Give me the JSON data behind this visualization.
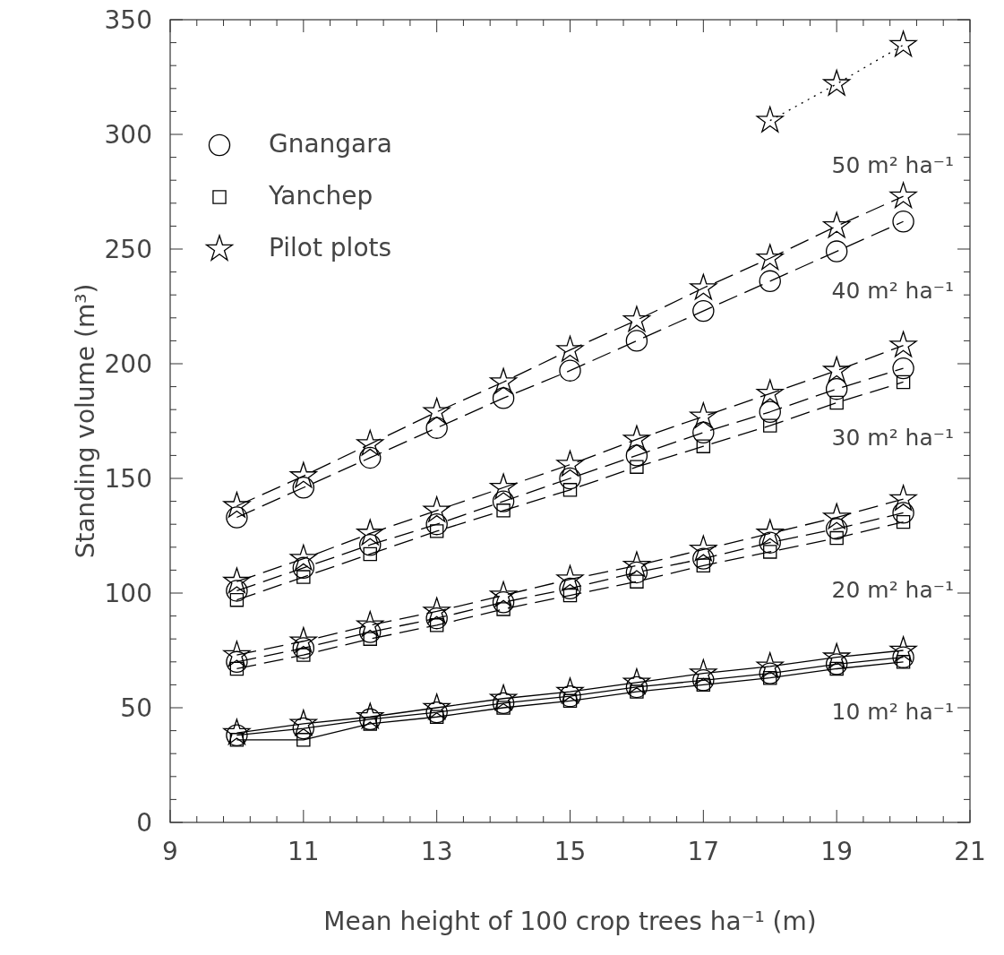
{
  "chart_data": {
    "type": "line",
    "xlabel": "Mean height of 100 crop trees ha⁻¹ (m)",
    "ylabel": "Standing volume (m³)",
    "x": [
      10,
      11,
      12,
      13,
      14,
      15,
      16,
      17,
      18,
      19,
      20
    ],
    "xlim": [
      9,
      21
    ],
    "ylim": [
      0,
      350
    ],
    "xticks": [
      9,
      {
        "value": 9.4,
        "label": null
      },
      {
        "value": 9.8,
        "label": null
      },
      {
        "value": 10.2,
        "label": null
      },
      {
        "value": 10.6,
        "label": null
      },
      11,
      {
        "value": 11.4,
        "label": null
      },
      {
        "value": 11.8,
        "label": null
      },
      {
        "value": 12.2,
        "label": null
      },
      {
        "value": 12.6,
        "label": null
      },
      13,
      {
        "value": 13.4,
        "label": null
      },
      {
        "value": 13.8,
        "label": null
      },
      {
        "value": 14.2,
        "label": null
      },
      {
        "value": 14.6,
        "label": null
      },
      15,
      {
        "value": 15.4,
        "label": null
      },
      {
        "value": 15.8,
        "label": null
      },
      {
        "value": 16.2,
        "label": null
      },
      {
        "value": 16.6,
        "label": null
      },
      17,
      {
        "value": 17.4,
        "label": null
      },
      {
        "value": 17.8,
        "label": null
      },
      {
        "value": 18.2,
        "label": null
      },
      {
        "value": 18.6,
        "label": null
      },
      19,
      {
        "value": 19.4,
        "label": null
      },
      {
        "value": 19.8,
        "label": null
      },
      {
        "value": 20.2,
        "label": null
      },
      {
        "value": 20.6,
        "label": null
      },
      21
    ],
    "yticks": [
      0,
      {
        "value": 10,
        "label": null
      },
      {
        "value": 20,
        "label": null
      },
      {
        "value": 30,
        "label": null
      },
      {
        "value": 40,
        "label": null
      },
      50,
      {
        "value": 60,
        "label": null
      },
      {
        "value": 70,
        "label": null
      },
      {
        "value": 80,
        "label": null
      },
      {
        "value": 90,
        "label": null
      },
      100,
      {
        "value": 110,
        "label": null
      },
      {
        "value": 120,
        "label": null
      },
      {
        "value": 130,
        "label": null
      },
      {
        "value": 140,
        "label": null
      },
      150,
      {
        "value": 160,
        "label": null
      },
      {
        "value": 170,
        "label": null
      },
      {
        "value": 180,
        "label": null
      },
      {
        "value": 190,
        "label": null
      },
      200,
      {
        "value": 210,
        "label": null
      },
      {
        "value": 220,
        "label": null
      },
      {
        "value": 230,
        "label": null
      },
      {
        "value": 240,
        "label": null
      },
      250,
      {
        "value": 260,
        "label": null
      },
      {
        "value": 270,
        "label": null
      },
      {
        "value": 280,
        "label": null
      },
      {
        "value": 290,
        "label": null
      },
      300,
      {
        "value": 310,
        "label": null
      },
      {
        "value": 320,
        "label": null
      },
      {
        "value": 330,
        "label": null
      },
      {
        "value": 340,
        "label": null
      },
      350
    ],
    "grid": false,
    "legend": "top left",
    "series": [
      {
        "name": "Gnangara",
        "color": "#000000",
        "marker": "circle",
        "line_style": "solid",
        "values": [
          38,
          41,
          45,
          48,
          52,
          55,
          59,
          62,
          65,
          69,
          72
        ]
      },
      {
        "name": "Yanchep",
        "color": "#000000",
        "marker": "square",
        "line_style": "solid",
        "values": [
          36,
          36,
          43,
          46,
          50,
          53,
          57,
          60,
          63,
          67,
          70
        ]
      },
      {
        "name": "Pilot plots",
        "color": "#000000",
        "marker": "star",
        "line_style": "solid",
        "values": [
          39,
          43,
          46,
          50,
          54,
          57,
          61,
          65,
          68,
          72,
          75
        ]
      },
      {
        "color": "#000000",
        "marker": "circle",
        "line_style": "dashed",
        "values": [
          70,
          76,
          83,
          89,
          96,
          102,
          109,
          115,
          122,
          128,
          135
        ]
      },
      {
        "color": "#000000",
        "marker": "square",
        "line_style": "dashed",
        "values": [
          67,
          73,
          80,
          86,
          93,
          99,
          105,
          112,
          118,
          124,
          131
        ]
      },
      {
        "color": "#000000",
        "marker": "star",
        "line_style": "dashed",
        "values": [
          73,
          79,
          86,
          92,
          99,
          106,
          112,
          119,
          126,
          133,
          141
        ]
      },
      {
        "color": "#000000",
        "marker": "circle",
        "line_style": "dashed",
        "values": [
          101,
          111,
          121,
          130,
          140,
          150,
          160,
          170,
          179,
          189,
          198
        ]
      },
      {
        "color": "#000000",
        "marker": "square",
        "line_style": "dashed",
        "values": [
          97,
          107,
          117,
          127,
          136,
          145,
          155,
          164,
          173,
          183,
          192
        ]
      },
      {
        "color": "#000000",
        "marker": "star",
        "line_style": "dashed",
        "values": [
          105,
          115,
          126,
          136,
          146,
          156,
          167,
          177,
          187,
          197,
          208
        ]
      },
      {
        "color": "#000000",
        "marker": "circle",
        "line_style": "dashed",
        "values": [
          133,
          146,
          159,
          172,
          185,
          197,
          210,
          223,
          236,
          249,
          262
        ]
      },
      {
        "color": "#000000",
        "marker": "star",
        "line_style": "dashed",
        "values": [
          138,
          151,
          165,
          179,
          192,
          206,
          219,
          233,
          246,
          260,
          273
        ]
      },
      {
        "color": "#000000",
        "marker": "star",
        "line_style": "dotted",
        "x": [
          18,
          19,
          20
        ],
        "values": [
          306,
          322,
          339
        ]
      }
    ],
    "annotations": [
      "50 m² ha⁻¹",
      "40 m² ha⁻¹",
      "30 m² ha⁻¹",
      "20 m² ha⁻¹",
      "10 m² ha⁻¹"
    ]
  }
}
